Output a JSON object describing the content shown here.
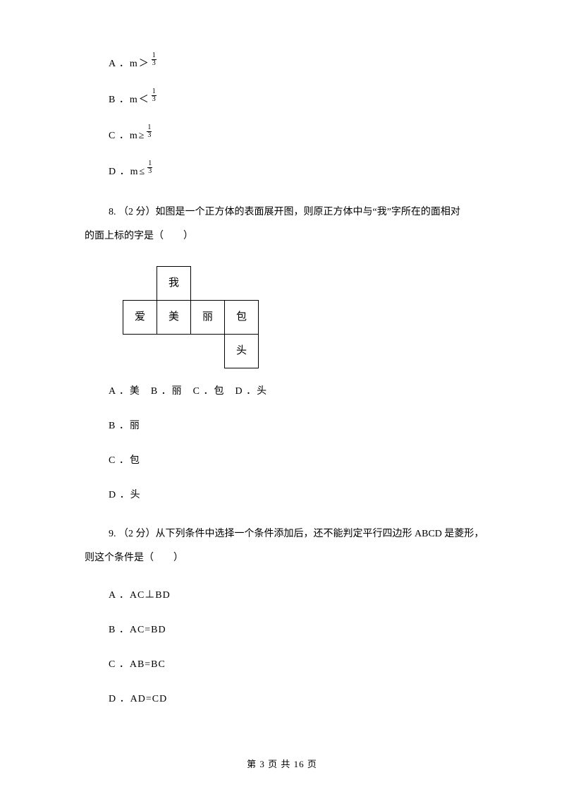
{
  "q7": {
    "options": {
      "A": {
        "label": "A ．",
        "var": "m",
        "rel": "＞",
        "num": "1",
        "den": "3"
      },
      "B": {
        "label": "B ．",
        "var": "m",
        "rel": "＜",
        "num": "1",
        "den": "3"
      },
      "C": {
        "label": "C ．",
        "var": "m",
        "rel": "≥",
        "num": "1",
        "den": "3"
      },
      "D": {
        "label": "D ．",
        "var": "m",
        "rel": "≤",
        "num": "1",
        "den": "3"
      }
    }
  },
  "q8": {
    "stem_line1": "8. （2 分）如图是一个正方体的表面展开图，则原正方体中与“我”字所在的面相对",
    "stem_line2": "的面上标的字是（　　）",
    "net": {
      "r1": [
        "",
        "我",
        "",
        "",
        ""
      ],
      "r2": [
        "爱",
        "美",
        "丽",
        "包",
        ""
      ],
      "r3": [
        "",
        "",
        "",
        "头",
        ""
      ]
    },
    "combinedRow": "A ．美　B ．丽　C ．包　D ．头",
    "optB": "B ．丽",
    "optC": "C ．包",
    "optD": "D ．头"
  },
  "q9": {
    "stem_line1": "9. （2 分）从下列条件中选择一个条件添加后，还不能判定平行四边形 ABCD 是菱形，",
    "stem_line2": "则这个条件是（　　）",
    "optA": "A ．AC⊥BD",
    "optB": "B ．AC=BD",
    "optC": "C ．AB=BC",
    "optD": "D ．AD=CD"
  },
  "footer": "第 3 页 共 16 页"
}
